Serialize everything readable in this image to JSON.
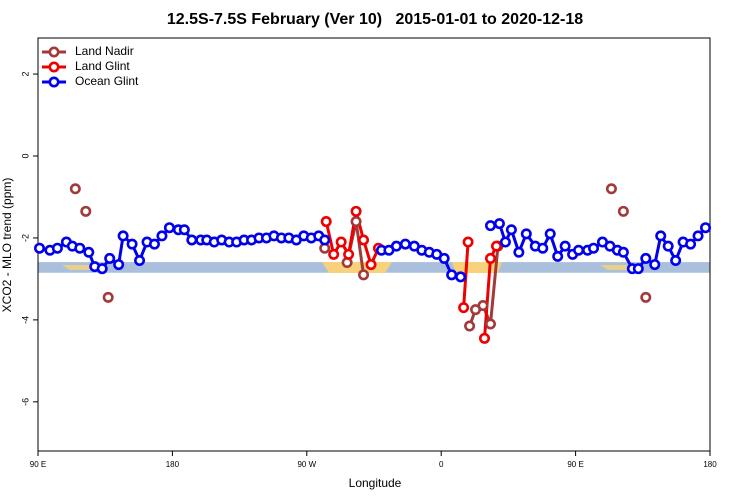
{
  "chart_data": {
    "type": "line",
    "title": "12.5S-7.5S February (Ver 10)   2015-01-01 to 2020-12-18",
    "x_label": "Longitude",
    "y_label": "XCO2 - MLO trend (ppm)",
    "xlim": [
      90,
      540
    ],
    "xticks": [
      {
        "value": 90,
        "label": "90 E"
      },
      {
        "value": 180,
        "label": "180"
      },
      {
        "value": 270,
        "label": "90 W"
      },
      {
        "value": 360,
        "label": "0"
      },
      {
        "value": 450,
        "label": "90 E"
      },
      {
        "value": 540,
        "label": "180"
      }
    ],
    "ylim": [
      -7.2,
      2.88
    ],
    "yticks": [
      -6,
      -4,
      -2,
      0,
      2
    ],
    "legend": "top-left",
    "reference_band": {
      "ylim": [
        -2.85,
        -2.59
      ],
      "color": "#a9bfdc"
    },
    "series": [
      {
        "name": "Land Nadir",
        "color": "#a33a3a",
        "x": [
          115,
          null,
          122,
          null,
          137,
          null,
          282,
          null,
          297,
          303,
          308,
          null,
          379,
          383,
          388,
          393,
          398,
          null,
          474,
          null,
          482,
          null,
          497
        ],
        "values": [
          -0.8,
          null,
          -1.35,
          null,
          -3.45,
          null,
          -2.25,
          null,
          -2.6,
          -1.6,
          -2.9,
          null,
          -4.15,
          -3.75,
          -3.65,
          -4.1,
          -2.2,
          null,
          -0.8,
          null,
          -1.35,
          null,
          -3.45
        ]
      },
      {
        "name": "Land Glint",
        "color": "#ee0000",
        "x": [
          283,
          288,
          293,
          298,
          303,
          308,
          313,
          318,
          null,
          375,
          378,
          null,
          389,
          393,
          397
        ],
        "values": [
          -1.6,
          -2.4,
          -2.1,
          -2.4,
          -1.35,
          -2.05,
          -2.65,
          -2.25,
          null,
          -3.7,
          -2.1,
          null,
          -4.45,
          -2.5,
          -2.2
        ]
      },
      {
        "name": "Ocean Glint",
        "color": "#0000ee",
        "x": [
          91,
          98,
          103,
          109,
          113,
          118,
          124,
          128,
          133,
          138,
          144,
          147,
          153,
          158,
          163,
          168,
          173,
          178,
          184,
          188,
          193,
          199,
          203,
          208,
          213,
          218,
          223,
          228,
          233,
          238,
          243,
          248,
          253,
          258,
          263,
          268,
          273,
          278,
          282,
          null,
          320,
          325,
          330,
          336,
          342,
          347,
          352,
          357,
          362,
          367,
          373,
          null,
          393,
          399,
          403,
          407,
          412,
          417,
          423,
          428,
          433,
          438,
          443,
          448,
          452,
          458,
          462,
          468,
          473,
          478,
          482,
          488,
          492,
          497,
          503,
          507,
          512,
          517,
          522,
          527,
          532,
          537
        ],
        "values": [
          -2.25,
          -2.3,
          -2.25,
          -2.1,
          -2.2,
          -2.25,
          -2.35,
          -2.7,
          -2.75,
          -2.5,
          -2.65,
          -1.95,
          -2.15,
          -2.55,
          -2.1,
          -2.15,
          -1.95,
          -1.75,
          -1.8,
          -1.8,
          -2.05,
          -2.05,
          -2.05,
          -2.1,
          -2.05,
          -2.1,
          -2.1,
          -2.05,
          -2.05,
          -2.0,
          -2.0,
          -1.95,
          -2.0,
          -2.0,
          -2.05,
          -1.95,
          -2.0,
          -1.95,
          -2.05,
          null,
          -2.3,
          -2.3,
          -2.2,
          -2.15,
          -2.2,
          -2.3,
          -2.35,
          -2.4,
          -2.5,
          -2.9,
          -2.95,
          null,
          -1.7,
          -1.65,
          -2.1,
          -1.8,
          -2.35,
          -1.9,
          -2.2,
          -2.25,
          -1.9,
          -2.45,
          -2.2,
          -2.4,
          -2.3,
          -2.3,
          -2.25,
          -2.1,
          -2.2,
          -2.3,
          -2.35,
          -2.75,
          -2.75,
          -2.5,
          -2.65,
          -1.95,
          -2.2,
          -2.55,
          -2.1,
          -2.15,
          -1.95,
          -1.75
        ]
      }
    ]
  }
}
